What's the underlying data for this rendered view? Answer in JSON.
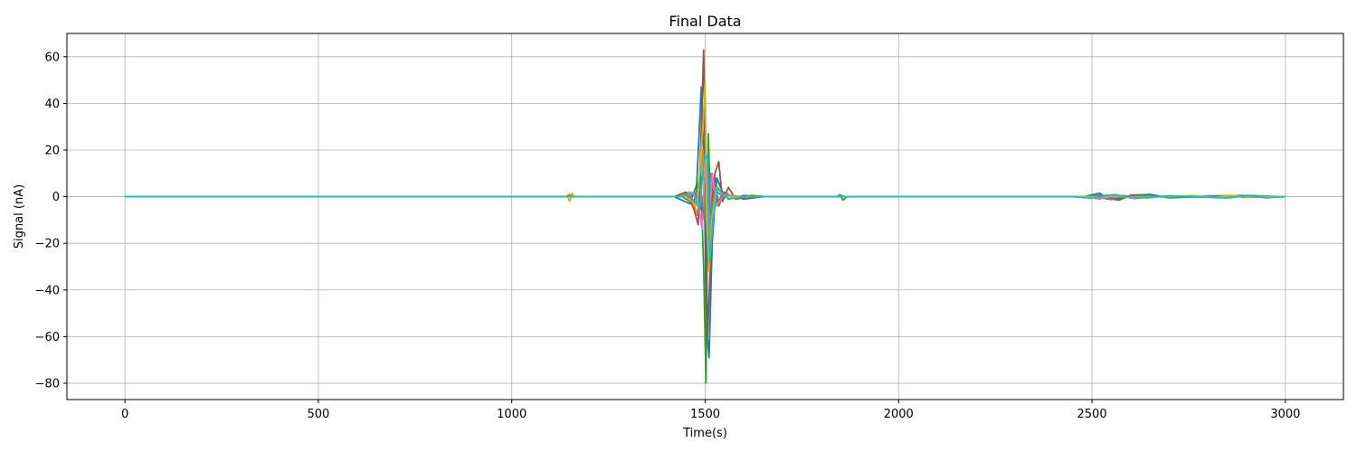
{
  "chart_data": {
    "type": "line",
    "title": "Final Data",
    "xlabel": "Time(s)",
    "ylabel": "Signal (nA)",
    "xlim": [
      -150,
      3150
    ],
    "ylim": [
      -87,
      70
    ],
    "x_ticks": [
      0,
      500,
      1000,
      1500,
      2000,
      2500,
      3000
    ],
    "y_ticks": [
      -80,
      -60,
      -40,
      -20,
      0,
      20,
      40,
      60
    ],
    "grid": true,
    "legend": "none",
    "series": [
      {
        "color": "#1f77b4",
        "points": [
          [
            0,
            0
          ],
          [
            1140,
            0
          ],
          [
            1150,
            0.8
          ],
          [
            1160,
            0
          ],
          [
            1420,
            0
          ],
          [
            1440,
            -1.5
          ],
          [
            1460,
            -3
          ],
          [
            1478,
            5
          ],
          [
            1490,
            47
          ],
          [
            1497,
            15
          ],
          [
            1503,
            -55
          ],
          [
            1510,
            -69
          ],
          [
            1518,
            -20
          ],
          [
            1530,
            8
          ],
          [
            1545,
            2
          ],
          [
            1560,
            -1
          ],
          [
            1600,
            0.5
          ],
          [
            1640,
            0
          ],
          [
            1840,
            0
          ],
          [
            1850,
            0.6
          ],
          [
            1860,
            0
          ],
          [
            2480,
            0
          ],
          [
            2500,
            0.8
          ],
          [
            2520,
            1.5
          ],
          [
            2540,
            -0.8
          ],
          [
            2570,
            -1.5
          ],
          [
            2600,
            0.6
          ],
          [
            2650,
            1
          ],
          [
            2700,
            -0.5
          ],
          [
            2800,
            0.3
          ],
          [
            2900,
            0.5
          ],
          [
            3000,
            0
          ]
        ]
      },
      {
        "color": "#ff7f0e",
        "points": [
          [
            0,
            0
          ],
          [
            1140,
            0
          ],
          [
            1150,
            1
          ],
          [
            1160,
            0
          ],
          [
            1430,
            0
          ],
          [
            1460,
            2
          ],
          [
            1480,
            -8
          ],
          [
            1494,
            20
          ],
          [
            1500,
            -10
          ],
          [
            1508,
            18
          ],
          [
            1515,
            -18
          ],
          [
            1525,
            6
          ],
          [
            1540,
            2
          ],
          [
            1580,
            -1
          ],
          [
            1620,
            0.5
          ],
          [
            1660,
            0
          ],
          [
            2490,
            0
          ],
          [
            2510,
            0.4
          ],
          [
            2540,
            -0.7
          ],
          [
            2580,
            0.5
          ],
          [
            2640,
            -0.6
          ],
          [
            2700,
            0.4
          ],
          [
            2820,
            0
          ],
          [
            2860,
            0.6
          ],
          [
            2890,
            -0.3
          ],
          [
            3000,
            0
          ]
        ]
      },
      {
        "color": "#2ca02c",
        "points": [
          [
            0,
            0
          ],
          [
            1440,
            0
          ],
          [
            1470,
            -3
          ],
          [
            1488,
            10
          ],
          [
            1496,
            -30
          ],
          [
            1502,
            -80
          ],
          [
            1508,
            27
          ],
          [
            1515,
            -10
          ],
          [
            1525,
            8
          ],
          [
            1535,
            -4
          ],
          [
            1550,
            2
          ],
          [
            1580,
            -1
          ],
          [
            1620,
            0.5
          ],
          [
            1660,
            0
          ],
          [
            1840,
            0
          ],
          [
            1848,
            0.8
          ],
          [
            1856,
            -1.5
          ],
          [
            1866,
            0
          ],
          [
            2490,
            0
          ],
          [
            2520,
            0.6
          ],
          [
            2570,
            -1
          ],
          [
            2620,
            0.8
          ],
          [
            2700,
            -0.4
          ],
          [
            2900,
            0.3
          ],
          [
            3000,
            0
          ]
        ]
      },
      {
        "color": "#d62728",
        "points": [
          [
            0,
            0
          ],
          [
            1450,
            0
          ],
          [
            1475,
            1
          ],
          [
            1492,
            -6
          ],
          [
            1500,
            8
          ],
          [
            1510,
            -12
          ],
          [
            1520,
            6
          ],
          [
            1530,
            -2
          ],
          [
            1560,
            0.5
          ],
          [
            1600,
            0
          ],
          [
            2500,
            0
          ],
          [
            2530,
            0.5
          ],
          [
            2560,
            -0.8
          ],
          [
            2600,
            0.5
          ],
          [
            2650,
            0
          ],
          [
            3000,
            0
          ]
        ]
      },
      {
        "color": "#9467bd",
        "points": [
          [
            0,
            0
          ],
          [
            1460,
            0
          ],
          [
            1484,
            -4
          ],
          [
            1496,
            12
          ],
          [
            1504,
            -16
          ],
          [
            1514,
            10
          ],
          [
            1526,
            -4
          ],
          [
            1545,
            1
          ],
          [
            1580,
            0
          ],
          [
            2500,
            0
          ],
          [
            2550,
            -1.2
          ],
          [
            2580,
            0.5
          ],
          [
            2610,
            -0.8
          ],
          [
            2660,
            0
          ],
          [
            3000,
            0
          ]
        ]
      },
      {
        "color": "#8c564b",
        "points": [
          [
            0,
            0
          ],
          [
            1420,
            0
          ],
          [
            1450,
            2
          ],
          [
            1470,
            -5
          ],
          [
            1482,
            -12
          ],
          [
            1492,
            40
          ],
          [
            1496,
            63
          ],
          [
            1500,
            10
          ],
          [
            1506,
            -60
          ],
          [
            1512,
            -35
          ],
          [
            1525,
            10
          ],
          [
            1535,
            15
          ],
          [
            1545,
            -2
          ],
          [
            1560,
            4
          ],
          [
            1575,
            0
          ],
          [
            1600,
            -1
          ],
          [
            1650,
            0
          ],
          [
            2500,
            0
          ],
          [
            2540,
            0.6
          ],
          [
            2600,
            0
          ],
          [
            3000,
            0
          ]
        ]
      },
      {
        "color": "#e377c2",
        "points": [
          [
            0,
            0
          ],
          [
            1450,
            0
          ],
          [
            1478,
            2
          ],
          [
            1492,
            -14
          ],
          [
            1500,
            18
          ],
          [
            1508,
            -22
          ],
          [
            1518,
            10
          ],
          [
            1530,
            -4
          ],
          [
            1550,
            1
          ],
          [
            1590,
            0
          ],
          [
            2480,
            0
          ],
          [
            2520,
            -1
          ],
          [
            2560,
            1
          ],
          [
            2600,
            -0.6
          ],
          [
            2640,
            0
          ],
          [
            3000,
            0
          ]
        ]
      },
      {
        "color": "#7f7f7f",
        "points": [
          [
            0,
            0
          ],
          [
            1460,
            0
          ],
          [
            1488,
            3
          ],
          [
            1498,
            -10
          ],
          [
            1505,
            14
          ],
          [
            1514,
            -8
          ],
          [
            1526,
            3
          ],
          [
            1545,
            0
          ],
          [
            3000,
            0
          ]
        ]
      },
      {
        "color": "#bcbd22",
        "points": [
          [
            0,
            0
          ],
          [
            1144,
            0
          ],
          [
            1150,
            -2
          ],
          [
            1156,
            1.5
          ],
          [
            1162,
            0
          ],
          [
            1450,
            0
          ],
          [
            1480,
            -4
          ],
          [
            1494,
            30
          ],
          [
            1500,
            49
          ],
          [
            1504,
            -10
          ],
          [
            1510,
            -32
          ],
          [
            1518,
            -8
          ],
          [
            1530,
            4
          ],
          [
            1550,
            0
          ],
          [
            2700,
            0
          ],
          [
            2760,
            0.5
          ],
          [
            2820,
            -0.4
          ],
          [
            2860,
            0.5
          ],
          [
            2900,
            0
          ],
          [
            3000,
            0
          ]
        ]
      },
      {
        "color": "#17becf",
        "points": [
          [
            0,
            0
          ],
          [
            1440,
            0
          ],
          [
            1470,
            2
          ],
          [
            1486,
            -6
          ],
          [
            1496,
            15
          ],
          [
            1506,
            18
          ],
          [
            1512,
            -28
          ],
          [
            1520,
            -10
          ],
          [
            1532,
            4
          ],
          [
            1545,
            1
          ],
          [
            1560,
            -1
          ],
          [
            1600,
            0
          ],
          [
            2450,
            0
          ],
          [
            2500,
            -0.7
          ],
          [
            2550,
            0.8
          ],
          [
            2620,
            -0.5
          ],
          [
            2700,
            0.3
          ],
          [
            2850,
            -0.6
          ],
          [
            2900,
            0.4
          ],
          [
            2950,
            -0.5
          ],
          [
            3000,
            0
          ]
        ]
      }
    ]
  }
}
